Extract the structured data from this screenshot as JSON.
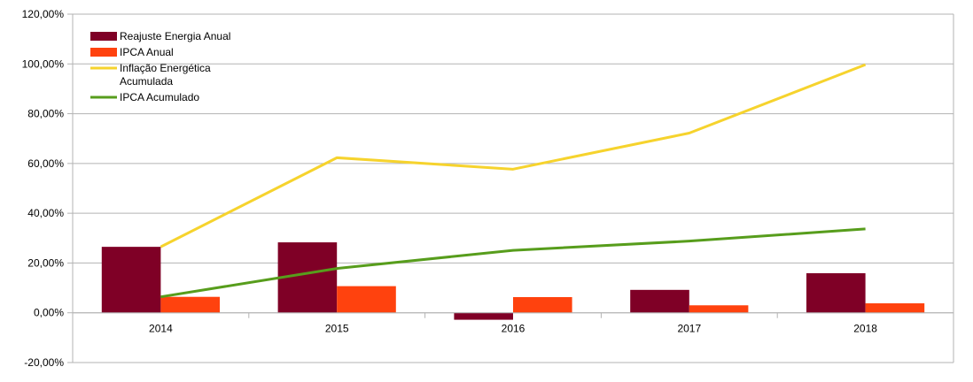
{
  "chart_data": {
    "type": "bar",
    "categories": [
      "2014",
      "2015",
      "2016",
      "2017",
      "2018"
    ],
    "series": [
      {
        "name": "Reajuste Energia Anual",
        "type": "bar",
        "color": "#7f0026",
        "values": [
          26.5,
          28.3,
          -2.8,
          9.2,
          15.9
        ]
      },
      {
        "name": "IPCA Anual",
        "type": "bar",
        "color": "#ff420e",
        "values": [
          6.4,
          10.7,
          6.3,
          3.0,
          3.8
        ]
      },
      {
        "name": "Inflação Energética Acumulada",
        "legend_lines": [
          "Inflação Energética",
          "Acumulada"
        ],
        "type": "line",
        "color": "#f6d32d",
        "values": [
          26.5,
          62.3,
          57.7,
          72.2,
          99.7
        ]
      },
      {
        "name": "IPCA Acumulado",
        "type": "line",
        "color": "#579d1c",
        "values": [
          6.4,
          17.8,
          25.1,
          28.8,
          33.7
        ]
      }
    ],
    "ylim": [
      -20,
      120
    ],
    "yticks": [
      "-20,00%",
      "0,00%",
      "20,00%",
      "40,00%",
      "60,00%",
      "80,00%",
      "100,00%",
      "120,00%"
    ],
    "ytick_values": [
      -20,
      0,
      20,
      40,
      60,
      80,
      100,
      120
    ],
    "grid": "horizontal",
    "legend_position": "top-left"
  }
}
